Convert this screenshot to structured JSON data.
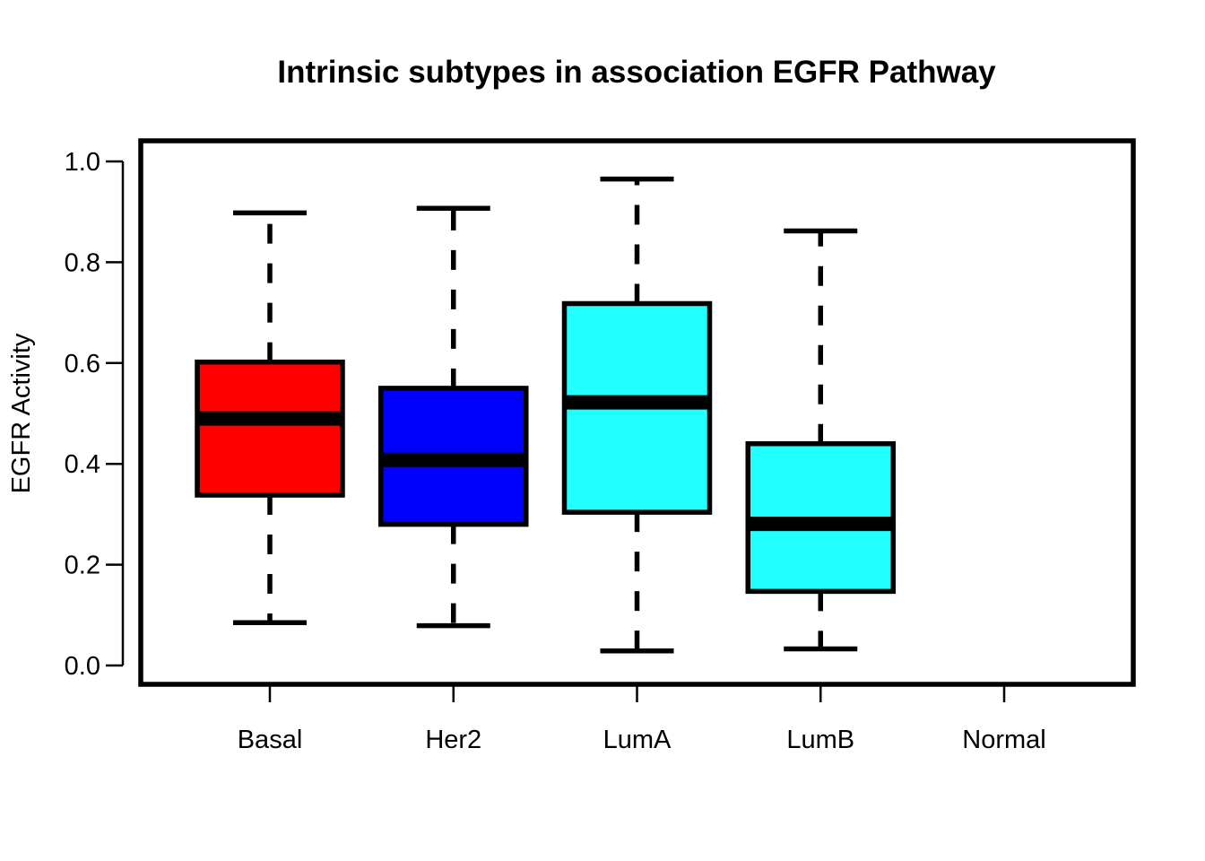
{
  "chart_data": {
    "type": "box",
    "title": "Intrinsic subtypes in association EGFR Pathway",
    "xlabel": "",
    "ylabel": "EGFR Activity",
    "ylim": [
      0.0,
      1.0
    ],
    "y_ticks": [
      "0.0",
      "0.2",
      "0.4",
      "0.6",
      "0.8",
      "1.0"
    ],
    "categories": [
      "Basal",
      "Her2",
      "LumA",
      "LumB",
      "Normal"
    ],
    "series": [
      {
        "category": "Basal",
        "color": "#ff0000",
        "whisker_low": 0.085,
        "q1": 0.338,
        "median": 0.49,
        "q3": 0.602,
        "whisker_high": 0.898
      },
      {
        "category": "Her2",
        "color": "#0000ff",
        "whisker_low": 0.079,
        "q1": 0.28,
        "median": 0.408,
        "q3": 0.55,
        "whisker_high": 0.907
      },
      {
        "category": "LumA",
        "color": "#22ffff",
        "whisker_low": 0.029,
        "q1": 0.304,
        "median": 0.522,
        "q3": 0.718,
        "whisker_high": 0.965
      },
      {
        "category": "LumB",
        "color": "#22ffff",
        "whisker_low": 0.033,
        "q1": 0.147,
        "median": 0.281,
        "q3": 0.44,
        "whisker_high": 0.862
      },
      {
        "category": "Normal",
        "color": "",
        "whisker_low": null,
        "q1": null,
        "median": null,
        "q3": null,
        "whisker_high": null
      }
    ],
    "grid": false,
    "legend": "none"
  }
}
